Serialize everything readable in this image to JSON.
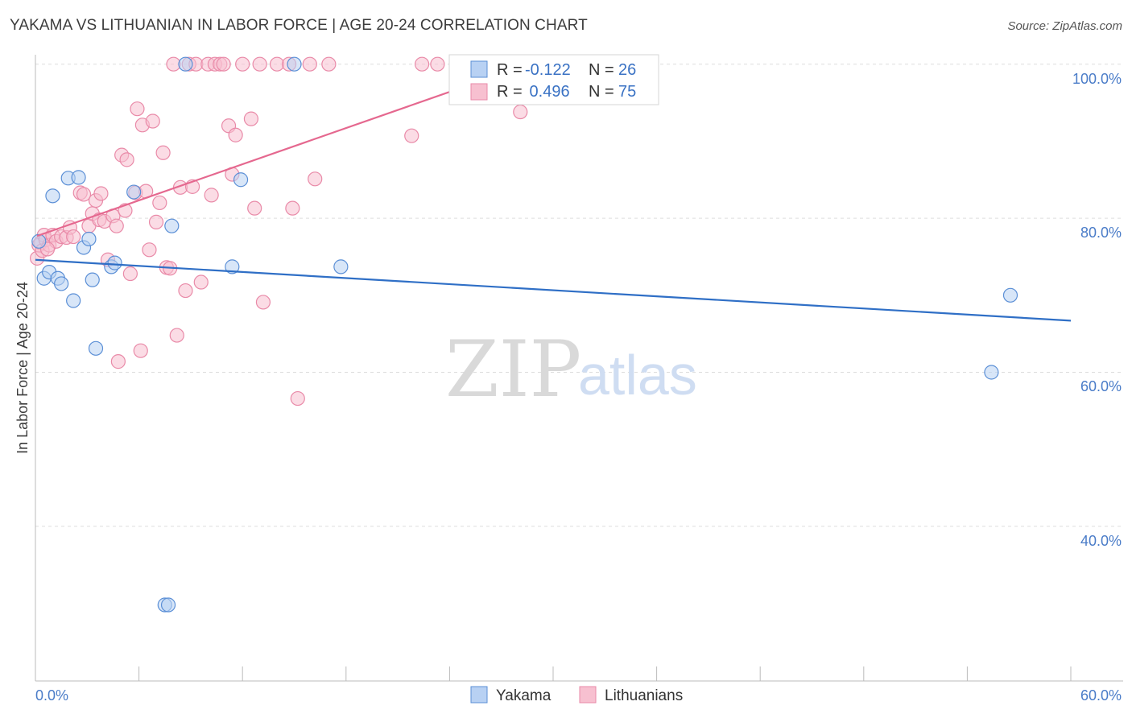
{
  "title": "YAKAMA VS LITHUANIAN IN LABOR FORCE | AGE 20-24 CORRELATION CHART",
  "source": "Source: ZipAtlas.com",
  "colors": {
    "yakama_fill": "#b8d1f3",
    "yakama_stroke": "#5b8fd6",
    "yakama_line": "#2f6fc6",
    "lith_fill": "#f7c0d0",
    "lith_stroke": "#e98aa8",
    "lith_line": "#e5688f",
    "grid": "#dddddd",
    "tick_label": "#4a7cc8"
  },
  "legend": {
    "rows": [
      {
        "r_label": "R = ",
        "r_value": "-0.122",
        "n_label": "N = ",
        "n_value": "26"
      },
      {
        "r_label": "R = ",
        "r_value": " 0.496",
        "n_label": "N = ",
        "n_value": "75"
      }
    ]
  },
  "bottom_legend": [
    "Yakama",
    "Lithuanians"
  ],
  "watermark": {
    "zip": "ZIP",
    "atlas": "atlas"
  },
  "chart_data": {
    "type": "scatter",
    "title": "YAKAMA VS LITHUANIAN IN LABOR FORCE | AGE 20-24 CORRELATION CHART",
    "xlabel": "",
    "ylabel": "In Labor Force | Age 20-24",
    "xlim": [
      0,
      60
    ],
    "ylim": [
      20,
      104
    ],
    "x_tick_labels": [
      "0.0%",
      "60.0%"
    ],
    "y_ticks": [
      40,
      60,
      80,
      100
    ],
    "y_tick_labels": [
      "40.0%",
      "60.0%",
      "80.0%",
      "100.0%"
    ],
    "grid": true,
    "legend_position": "top-center",
    "series": [
      {
        "name": "Yakama",
        "r": -0.122,
        "n": 26,
        "trend": {
          "x": [
            0,
            60
          ],
          "y": [
            74.6,
            66.7
          ]
        },
        "points": [
          [
            0.2,
            77.0
          ],
          [
            0.5,
            72.2
          ],
          [
            0.8,
            73.0
          ],
          [
            1.0,
            82.9
          ],
          [
            1.3,
            72.2
          ],
          [
            1.5,
            71.5
          ],
          [
            1.9,
            85.2
          ],
          [
            2.2,
            69.3
          ],
          [
            2.5,
            85.3
          ],
          [
            2.8,
            76.2
          ],
          [
            3.1,
            77.3
          ],
          [
            3.3,
            72.0
          ],
          [
            3.5,
            63.1
          ],
          [
            4.4,
            73.7
          ],
          [
            4.6,
            74.2
          ],
          [
            5.7,
            83.4
          ],
          [
            7.5,
            29.8
          ],
          [
            7.7,
            29.8
          ],
          [
            7.9,
            79.0
          ],
          [
            8.7,
            100.0
          ],
          [
            11.4,
            73.7
          ],
          [
            11.9,
            85.0
          ],
          [
            15.0,
            100.0
          ],
          [
            17.7,
            73.7
          ],
          [
            55.4,
            60.0
          ],
          [
            56.5,
            70.0
          ]
        ]
      },
      {
        "name": "Lithuanians",
        "r": 0.496,
        "n": 75,
        "trend": {
          "x": [
            0.1,
            28.6
          ],
          "y": [
            77.7,
            100.0
          ]
        },
        "points": [
          [
            0.1,
            74.8
          ],
          [
            0.2,
            76.5
          ],
          [
            0.3,
            76.8
          ],
          [
            0.4,
            75.8
          ],
          [
            0.5,
            77.8
          ],
          [
            0.6,
            77.2
          ],
          [
            0.8,
            76.5
          ],
          [
            1.0,
            77.8
          ],
          [
            1.2,
            77.0
          ],
          [
            1.5,
            77.6
          ],
          [
            1.8,
            77.5
          ],
          [
            2.0,
            78.8
          ],
          [
            2.2,
            77.6
          ],
          [
            2.6,
            83.3
          ],
          [
            2.8,
            83.1
          ],
          [
            3.1,
            79.0
          ],
          [
            3.3,
            80.6
          ],
          [
            3.5,
            82.3
          ],
          [
            3.7,
            79.8
          ],
          [
            3.8,
            83.2
          ],
          [
            4.0,
            79.6
          ],
          [
            4.2,
            74.6
          ],
          [
            4.5,
            80.3
          ],
          [
            4.7,
            79.0
          ],
          [
            4.8,
            61.4
          ],
          [
            5.0,
            88.2
          ],
          [
            5.2,
            81.0
          ],
          [
            5.3,
            87.6
          ],
          [
            5.5,
            72.8
          ],
          [
            5.8,
            83.3
          ],
          [
            5.9,
            94.2
          ],
          [
            6.1,
            62.8
          ],
          [
            6.2,
            92.1
          ],
          [
            6.4,
            83.5
          ],
          [
            6.6,
            75.9
          ],
          [
            6.8,
            92.6
          ],
          [
            7.0,
            79.5
          ],
          [
            7.2,
            82.0
          ],
          [
            7.4,
            88.5
          ],
          [
            7.6,
            73.6
          ],
          [
            7.8,
            73.5
          ],
          [
            8.0,
            100.0
          ],
          [
            8.2,
            64.8
          ],
          [
            8.4,
            84.0
          ],
          [
            8.7,
            70.6
          ],
          [
            8.9,
            100.0
          ],
          [
            9.1,
            84.1
          ],
          [
            9.3,
            100.0
          ],
          [
            9.6,
            71.7
          ],
          [
            10.0,
            100.0
          ],
          [
            10.2,
            83.0
          ],
          [
            10.4,
            100.0
          ],
          [
            10.7,
            100.0
          ],
          [
            10.9,
            100.0
          ],
          [
            11.2,
            92.0
          ],
          [
            11.4,
            85.7
          ],
          [
            11.6,
            90.8
          ],
          [
            12.0,
            100.0
          ],
          [
            12.5,
            92.9
          ],
          [
            12.7,
            81.3
          ],
          [
            13.0,
            100.0
          ],
          [
            13.2,
            69.1
          ],
          [
            14.0,
            100.0
          ],
          [
            14.7,
            100.0
          ],
          [
            14.9,
            81.3
          ],
          [
            15.2,
            56.6
          ],
          [
            15.9,
            100.0
          ],
          [
            16.2,
            85.1
          ],
          [
            17.0,
            100.0
          ],
          [
            21.8,
            90.7
          ],
          [
            22.4,
            100.0
          ],
          [
            23.3,
            100.0
          ],
          [
            28.1,
            93.8
          ],
          [
            28.6,
            100.0
          ],
          [
            0.7,
            76.0
          ]
        ]
      }
    ]
  }
}
